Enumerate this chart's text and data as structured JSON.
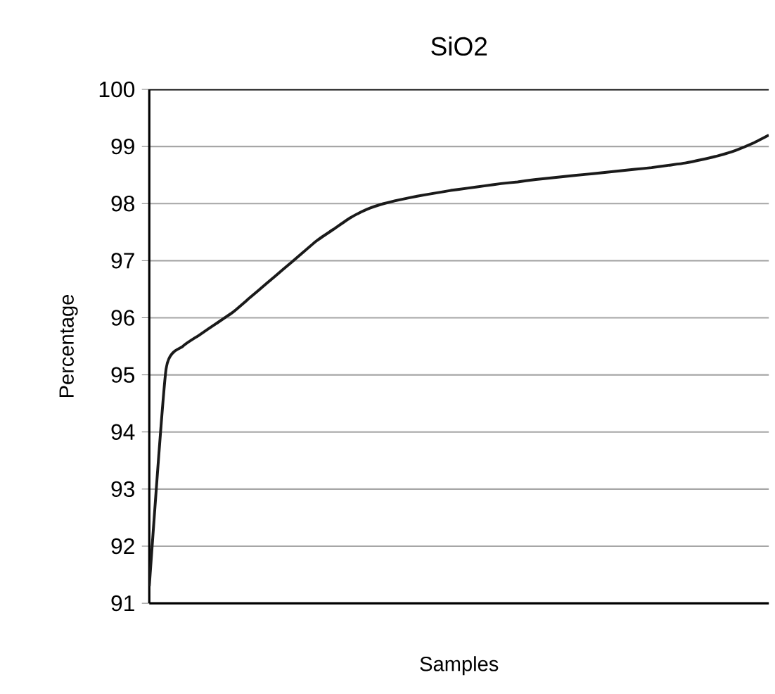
{
  "chart_data": {
    "type": "line",
    "title": "SiO2",
    "xlabel": "Samples",
    "ylabel": "Percentage",
    "categories": [
      null,
      null,
      null,
      null,
      null,
      null,
      null,
      null,
      null,
      null,
      null,
      null,
      null,
      null,
      null,
      null,
      null,
      null,
      null,
      null,
      null,
      null,
      null,
      null,
      null,
      null,
      null,
      null,
      null,
      null,
      null,
      null,
      null,
      null,
      null,
      null,
      null,
      null
    ],
    "series": [
      {
        "color": "#1a1a1a",
        "values": [
          91.3,
          95.1,
          95.5,
          95.7,
          95.9,
          96.1,
          96.35,
          96.6,
          96.85,
          97.1,
          97.35,
          97.55,
          97.75,
          97.9,
          98.0,
          98.07,
          98.13,
          98.18,
          98.23,
          98.27,
          98.31,
          98.35,
          98.38,
          98.42,
          98.45,
          98.48,
          98.51,
          98.54,
          98.57,
          98.6,
          98.63,
          98.67,
          98.71,
          98.77,
          98.84,
          98.93,
          99.05,
          99.2
        ]
      }
    ],
    "ylim": [
      91,
      100
    ],
    "yticks": [
      91,
      92,
      93,
      94,
      95,
      96,
      97,
      98,
      99,
      100
    ],
    "grid": "y",
    "marker": "none",
    "line_style": "solid"
  }
}
